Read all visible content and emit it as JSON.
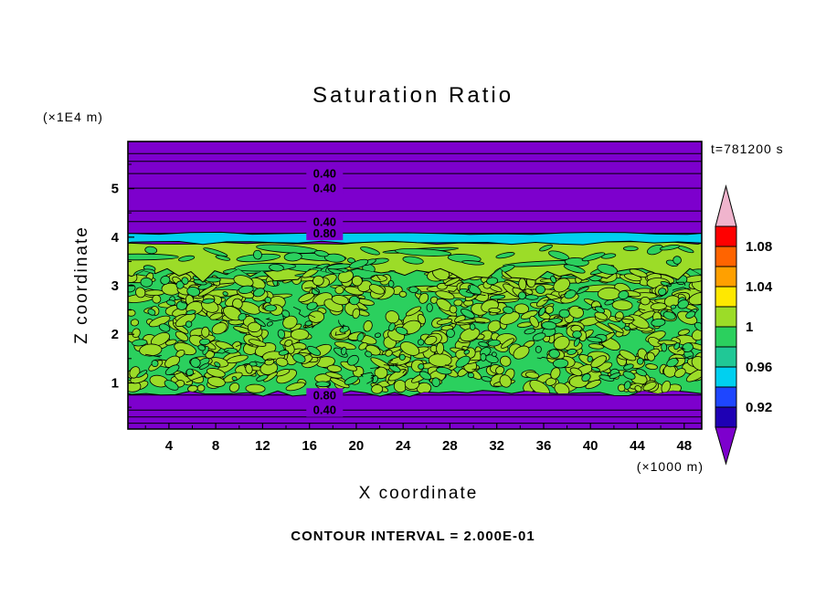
{
  "page": {
    "background": "#ffffff"
  },
  "chart_data": {
    "type": "filled-contour",
    "title": "Saturation Ratio",
    "xlabel": "X coordinate",
    "ylabel": "Z coordinate",
    "x_unit_label": "(×1000 m)",
    "y_unit_label": "(×1E4 m)",
    "time_annotation": "t=781200 s",
    "caption": "CONTOUR INTERVAL = 2.000E-01",
    "contour_interval": 0.2,
    "xlim": [
      0.5,
      49.5
    ],
    "ylim": [
      0.05,
      5.97
    ],
    "x_ticks": [
      4,
      8,
      12,
      16,
      20,
      24,
      28,
      32,
      36,
      40,
      44,
      48
    ],
    "y_ticks": [
      1,
      2,
      3,
      4,
      5
    ],
    "label_x": 17.3,
    "field": {
      "background_color": "#7d00cd",
      "description": "Dry purple regions above z≈4.1 and below z≈0.8 (×1E4 m); thin cyan band at z≈3.9–4.1; smooth yellow-green band z≈3.2–3.9; turbulent mottled green / yellow-green saturated layer z≈0.8–3.2",
      "bands": [
        {
          "name": "cyan-band",
          "z_top": 4.08,
          "z_bottom": 3.88,
          "color": "#00d0f0"
        },
        {
          "name": "yellow-green-band",
          "z_top": 3.88,
          "z_bottom": 3.22,
          "color": "#9cdc28"
        },
        {
          "name": "mottled-band",
          "z_top": 3.45,
          "z_bottom": 0.78,
          "color": "#2bd05e",
          "blob_color": "#9cdc28"
        }
      ]
    },
    "contour_lines": [
      {
        "z": 5.72,
        "label": ""
      },
      {
        "z": 5.56,
        "label": ""
      },
      {
        "z": 5.31,
        "label": "0.40"
      },
      {
        "z": 5.01,
        "label": "0.40"
      },
      {
        "z": 4.54,
        "label": ""
      },
      {
        "z": 4.32,
        "label": "0.40"
      },
      {
        "z": 4.08,
        "label": "0.80"
      },
      {
        "z": 0.75,
        "label": "0.80"
      },
      {
        "z": 0.44,
        "label": "0.40"
      },
      {
        "z": 0.3,
        "label": ""
      },
      {
        "z": 0.17,
        "label": ""
      }
    ],
    "colorbar": {
      "vmin": 0.9,
      "vmax": 1.1,
      "step": 0.02,
      "tick_labels": [
        "1.08",
        "1.04",
        "1",
        "0.96",
        "0.92"
      ],
      "tick_values": [
        1.08,
        1.04,
        1,
        0.96,
        0.92
      ],
      "segments": [
        {
          "from": 1.08,
          "to": 1.1,
          "color": "#ff0000"
        },
        {
          "from": 1.06,
          "to": 1.08,
          "color": "#ff6400"
        },
        {
          "from": 1.04,
          "to": 1.06,
          "color": "#ffa000"
        },
        {
          "from": 1.02,
          "to": 1.04,
          "color": "#ffe800"
        },
        {
          "from": 1.0,
          "to": 1.02,
          "color": "#9cdc28"
        },
        {
          "from": 0.98,
          "to": 1.0,
          "color": "#2bd05e"
        },
        {
          "from": 0.96,
          "to": 0.98,
          "color": "#20c896"
        },
        {
          "from": 0.94,
          "to": 0.96,
          "color": "#00d0f0"
        },
        {
          "from": 0.92,
          "to": 0.94,
          "color": "#1e46ff"
        },
        {
          "from": 0.9,
          "to": 0.92,
          "color": "#1e00b4"
        }
      ],
      "over_color": "#f0b4cd",
      "under_color": "#7d00cd"
    },
    "texture": {
      "seed": 987654321,
      "mottled": {
        "blob_count": 560,
        "counter_blob_count": 150,
        "streak_count": 30,
        "squiggle_count": 36
      },
      "upper_band": {
        "green_blob_count": 46,
        "streak_count": 12
      }
    }
  }
}
